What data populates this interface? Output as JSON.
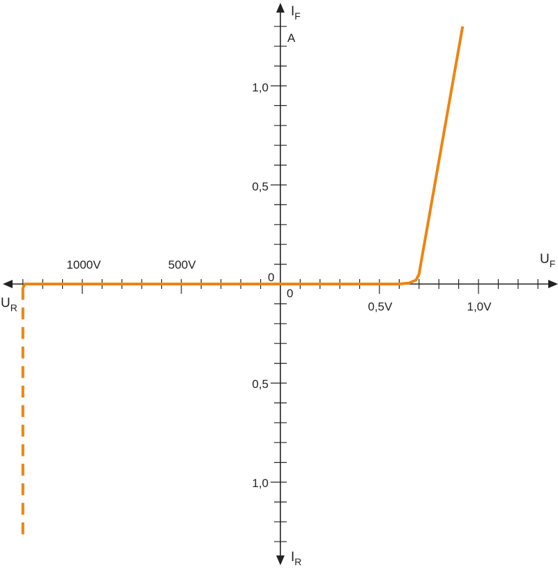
{
  "chart_data": {
    "type": "line",
    "title": "",
    "axes": {
      "x_positive": {
        "label": "U",
        "label_sub": "F",
        "unit": "V",
        "range": [
          0,
          1.3
        ],
        "tick_step": 0.1,
        "tick_labels": [
          {
            "value": 0.5,
            "text": "0,5V"
          },
          {
            "value": 1.0,
            "text": "1,0V"
          }
        ],
        "origin_label": "0"
      },
      "x_negative": {
        "label": "U",
        "label_sub": "R",
        "unit": "V",
        "range": [
          0,
          1300
        ],
        "tick_step": 100,
        "tick_labels": [
          {
            "value": 500,
            "text": "500V"
          },
          {
            "value": 1000,
            "text": "1000V"
          }
        ]
      },
      "y_positive": {
        "label": "I",
        "label_sub": "F",
        "unit_label": "A",
        "range": [
          0,
          1.3
        ],
        "tick_step": 0.1,
        "tick_labels": [
          {
            "value": 0.5,
            "text": "0,5"
          },
          {
            "value": 1.0,
            "text": "1,0"
          }
        ],
        "origin_label": "0"
      },
      "y_negative": {
        "label": "I",
        "label_sub": "R",
        "range": [
          0,
          1.3
        ],
        "tick_step": 0.1,
        "tick_labels": [
          {
            "value": 0.5,
            "text": "0,5"
          },
          {
            "value": 1.0,
            "text": "1,0"
          }
        ]
      }
    },
    "series": [
      {
        "style": "solid",
        "color": "#ee8412",
        "segment": "forward",
        "points": [
          [
            0,
            0
          ],
          [
            0.6,
            0
          ],
          [
            0.65,
            0.005
          ],
          [
            0.685,
            0.02
          ],
          [
            0.7,
            0.05
          ],
          [
            0.705,
            0.08
          ],
          [
            0.92,
            1.3
          ]
        ]
      },
      {
        "style": "solid",
        "color": "#ee8412",
        "segment": "reverse-blocking",
        "points_V_A": [
          [
            0,
            0
          ],
          [
            1290,
            0
          ],
          [
            1300,
            -0.02
          ]
        ]
      },
      {
        "style": "dashed",
        "color": "#ee8412",
        "segment": "reverse-breakdown",
        "points_V_A": [
          [
            1300,
            -0.02
          ],
          [
            1300,
            -1.28
          ]
        ]
      }
    ],
    "grid": false,
    "legend": "none"
  }
}
